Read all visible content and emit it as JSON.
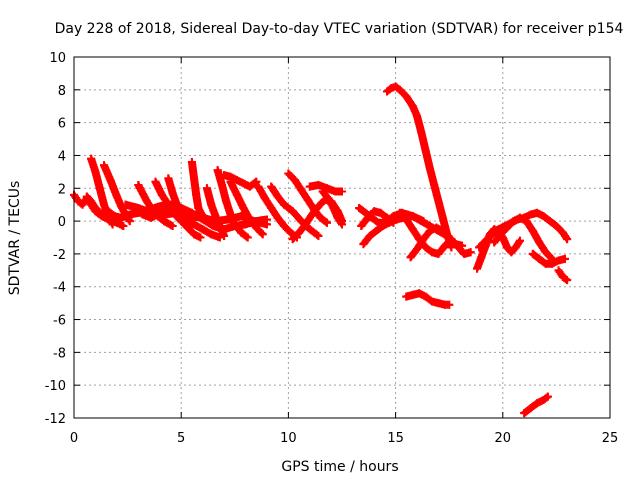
{
  "chart_data": {
    "type": "scatter",
    "title": "Day 228 of 2018, Sidereal Day-to-day VTEC variation (SDTVAR) for receiver p154",
    "xlabel": "GPS time / hours",
    "ylabel": "SDTVAR / TECUs",
    "xlim": [
      0,
      25
    ],
    "ylim": [
      -12,
      10
    ],
    "xticks": [
      "0",
      "5",
      "10",
      "15",
      "20",
      "25"
    ],
    "yticks": [
      "-12",
      "-10",
      "-8",
      "-6",
      "-4",
      "-2",
      "0",
      "2",
      "4",
      "6",
      "8",
      "10"
    ],
    "grid": true,
    "marker": "plus",
    "color": "#ff0000",
    "series": [
      {
        "points": [
          [
            0,
            1.6
          ],
          [
            0.2,
            1.2
          ],
          [
            0.4,
            1.0
          ],
          [
            0.6,
            1.4
          ],
          [
            0.8,
            1.0
          ],
          [
            1.0,
            0.6
          ],
          [
            1.3,
            0.3
          ],
          [
            1.6,
            0.1
          ],
          [
            2.0,
            -0.1
          ],
          [
            2.3,
            -0.3
          ]
        ]
      },
      {
        "points": [
          [
            0.6,
            1.5
          ],
          [
            0.8,
            1.2
          ],
          [
            1.0,
            0.8
          ],
          [
            1.3,
            0.4
          ],
          [
            1.6,
            0.6
          ],
          [
            1.9,
            0.3
          ],
          [
            2.2,
            0.2
          ],
          [
            2.6,
            0.4
          ],
          [
            3.0,
            0.5
          ],
          [
            3.5,
            0.7
          ],
          [
            4.0,
            0.9
          ],
          [
            4.5,
            1.0
          ],
          [
            5.0,
            0.8
          ],
          [
            5.5,
            0.5
          ],
          [
            6.0,
            0.1
          ],
          [
            6.5,
            -0.3
          ],
          [
            7.0,
            -0.5
          ],
          [
            7.5,
            -0.3
          ],
          [
            8.0,
            -0.2
          ],
          [
            8.5,
            0.0
          ],
          [
            9.0,
            0.1
          ]
        ]
      },
      {
        "points": [
          [
            0.8,
            3.8
          ],
          [
            1.0,
            3.0
          ],
          [
            1.2,
            2.0
          ],
          [
            1.4,
            1.0
          ],
          [
            1.6,
            0.3
          ],
          [
            1.8,
            -0.2
          ]
        ]
      },
      {
        "points": [
          [
            1.4,
            3.4
          ],
          [
            1.7,
            2.5
          ],
          [
            2.0,
            1.5
          ],
          [
            2.2,
            0.9
          ],
          [
            2.4,
            0.4
          ],
          [
            2.6,
            0.0
          ]
        ]
      },
      {
        "points": [
          [
            2.4,
            1.0
          ],
          [
            3.0,
            0.8
          ],
          [
            3.6,
            0.5
          ],
          [
            4.2,
            0.4
          ],
          [
            4.8,
            0.5
          ],
          [
            5.4,
            0.3
          ],
          [
            6.0,
            0.2
          ],
          [
            6.6,
            0.0
          ],
          [
            7.2,
            0.1
          ],
          [
            7.8,
            0.3
          ],
          [
            8.4,
            0.0
          ],
          [
            9.0,
            -0.2
          ]
        ]
      },
      {
        "points": [
          [
            2.8,
            0.8
          ],
          [
            3.2,
            0.4
          ],
          [
            3.6,
            0.2
          ],
          [
            4.0,
            0.5
          ],
          [
            4.4,
            0.9
          ],
          [
            4.8,
            0.6
          ],
          [
            5.2,
            0.2
          ],
          [
            5.6,
            -0.2
          ],
          [
            6.0,
            -0.5
          ],
          [
            6.4,
            -0.8
          ],
          [
            6.8,
            -1.0
          ]
        ]
      },
      {
        "points": [
          [
            3.0,
            2.2
          ],
          [
            3.4,
            1.2
          ],
          [
            3.8,
            0.4
          ],
          [
            4.2,
            0.0
          ],
          [
            4.6,
            -0.3
          ]
        ]
      },
      {
        "points": [
          [
            3.8,
            2.4
          ],
          [
            4.1,
            1.6
          ],
          [
            4.4,
            1.0
          ],
          [
            4.7,
            0.4
          ],
          [
            5.0,
            0.0
          ],
          [
            5.3,
            -0.4
          ],
          [
            5.6,
            -0.8
          ],
          [
            5.9,
            -1.0
          ]
        ]
      },
      {
        "points": [
          [
            4.4,
            2.6
          ],
          [
            4.6,
            1.7
          ],
          [
            4.8,
            1.0
          ],
          [
            5.0,
            0.6
          ],
          [
            5.2,
            0.2
          ],
          [
            5.5,
            -0.2
          ]
        ]
      },
      {
        "points": [
          [
            5.5,
            3.6
          ],
          [
            5.6,
            2.6
          ],
          [
            5.7,
            1.6
          ],
          [
            5.8,
            0.8
          ],
          [
            6.0,
            0.3
          ],
          [
            6.3,
            0.0
          ]
        ]
      },
      {
        "points": [
          [
            6.2,
            2.0
          ],
          [
            6.4,
            1.0
          ],
          [
            6.6,
            0.3
          ],
          [
            6.8,
            -0.3
          ],
          [
            7.0,
            -0.9
          ]
        ]
      },
      {
        "points": [
          [
            6.7,
            3.1
          ],
          [
            6.9,
            2.2
          ],
          [
            7.1,
            1.2
          ],
          [
            7.3,
            0.4
          ],
          [
            7.5,
            -0.2
          ],
          [
            7.8,
            -0.7
          ],
          [
            8.1,
            -1.0
          ]
        ]
      },
      {
        "points": [
          [
            7.0,
            2.8
          ],
          [
            7.3,
            2.7
          ],
          [
            7.6,
            2.5
          ],
          [
            7.9,
            2.3
          ],
          [
            8.2,
            2.1
          ],
          [
            8.5,
            2.4
          ]
        ]
      },
      {
        "points": [
          [
            7.3,
            2.4
          ],
          [
            7.6,
            1.6
          ],
          [
            7.9,
            0.8
          ],
          [
            8.2,
            0.1
          ],
          [
            8.5,
            -0.4
          ],
          [
            8.8,
            -0.8
          ]
        ]
      },
      {
        "points": [
          [
            8.6,
            2.1
          ],
          [
            8.9,
            1.4
          ],
          [
            9.2,
            0.8
          ],
          [
            9.5,
            0.2
          ],
          [
            9.8,
            -0.3
          ],
          [
            10.1,
            -0.7
          ],
          [
            10.4,
            -1.0
          ]
        ]
      },
      {
        "points": [
          [
            9.2,
            2.1
          ],
          [
            9.5,
            1.5
          ],
          [
            9.8,
            1.0
          ],
          [
            10.2,
            0.6
          ],
          [
            10.6,
            0.0
          ],
          [
            11.0,
            -0.5
          ],
          [
            11.4,
            -0.9
          ]
        ]
      },
      {
        "points": [
          [
            10.0,
            2.9
          ],
          [
            10.3,
            2.5
          ],
          [
            10.6,
            1.9
          ],
          [
            10.9,
            1.3
          ],
          [
            11.2,
            0.7
          ],
          [
            11.5,
            0.2
          ],
          [
            11.8,
            -0.1
          ]
        ]
      },
      {
        "points": [
          [
            10.2,
            -1.1
          ],
          [
            10.5,
            -0.7
          ],
          [
            10.8,
            -0.2
          ],
          [
            11.1,
            0.4
          ],
          [
            11.4,
            0.9
          ],
          [
            11.7,
            1.3
          ],
          [
            12.0,
            1.2
          ],
          [
            12.3,
            0.6
          ],
          [
            12.5,
            0.0
          ]
        ]
      },
      {
        "points": [
          [
            11.0,
            2.1
          ],
          [
            11.4,
            2.2
          ],
          [
            11.8,
            2.0
          ],
          [
            12.2,
            1.8
          ],
          [
            12.5,
            1.8
          ]
        ]
      },
      {
        "points": [
          [
            11.6,
            1.8
          ],
          [
            11.9,
            1.3
          ],
          [
            12.1,
            0.8
          ],
          [
            12.3,
            0.2
          ],
          [
            12.5,
            -0.2
          ]
        ]
      },
      {
        "points": [
          [
            13.3,
            0.8
          ],
          [
            13.6,
            0.5
          ],
          [
            13.9,
            0.2
          ],
          [
            14.2,
            -0.1
          ],
          [
            14.5,
            -0.1
          ],
          [
            14.9,
            0.3
          ],
          [
            15.3,
            0.5
          ],
          [
            15.8,
            0.3
          ],
          [
            16.3,
            0.0
          ]
        ]
      },
      {
        "points": [
          [
            13.4,
            -0.3
          ],
          [
            13.7,
            0.2
          ],
          [
            14.0,
            0.6
          ],
          [
            14.3,
            0.5
          ],
          [
            14.6,
            0.2
          ],
          [
            14.9,
            -0.1
          ]
        ]
      },
      {
        "points": [
          [
            13.5,
            -1.4
          ],
          [
            13.8,
            -0.9
          ],
          [
            14.1,
            -0.6
          ],
          [
            14.4,
            -0.3
          ],
          [
            14.7,
            -0.1
          ],
          [
            15.0,
            0.1
          ],
          [
            15.4,
            0.2
          ],
          [
            15.8,
            0.3
          ],
          [
            16.2,
            0.0
          ],
          [
            16.6,
            -0.3
          ],
          [
            17.0,
            -0.6
          ],
          [
            17.4,
            -0.9
          ],
          [
            17.8,
            -1.4
          ],
          [
            18.2,
            -2.0
          ],
          [
            18.5,
            -1.9
          ]
        ]
      },
      {
        "points": [
          [
            15.2,
            0.5
          ],
          [
            15.5,
            0.1
          ],
          [
            15.8,
            -0.5
          ],
          [
            16.1,
            -1.1
          ],
          [
            16.4,
            -1.6
          ],
          [
            16.7,
            -1.9
          ],
          [
            17.0,
            -2.0
          ],
          [
            17.3,
            -1.5
          ],
          [
            17.6,
            -1.1
          ]
        ]
      },
      {
        "points": [
          [
            15.7,
            -2.2
          ],
          [
            16.0,
            -1.7
          ],
          [
            16.3,
            -1.1
          ],
          [
            16.6,
            -0.6
          ],
          [
            16.9,
            -0.4
          ],
          [
            17.2,
            -0.6
          ],
          [
            17.5,
            -1.0
          ],
          [
            17.8,
            -1.4
          ],
          [
            18.1,
            -1.5
          ]
        ]
      },
      {
        "points": [
          [
            14.6,
            7.9
          ],
          [
            14.8,
            8.1
          ],
          [
            15.0,
            8.2
          ],
          [
            15.2,
            8.0
          ],
          [
            15.5,
            7.6
          ],
          [
            15.8,
            7.0
          ],
          [
            16.0,
            6.4
          ],
          [
            16.2,
            5.4
          ],
          [
            16.4,
            4.3
          ],
          [
            16.6,
            3.2
          ],
          [
            16.8,
            2.2
          ],
          [
            17.0,
            1.2
          ],
          [
            17.2,
            0.2
          ],
          [
            17.4,
            -0.8
          ],
          [
            17.6,
            -1.6
          ]
        ]
      },
      {
        "points": [
          [
            15.5,
            -4.6
          ],
          [
            15.8,
            -4.5
          ],
          [
            16.1,
            -4.4
          ],
          [
            16.4,
            -4.6
          ],
          [
            16.7,
            -4.9
          ],
          [
            17.0,
            -5.0
          ],
          [
            17.3,
            -5.1
          ],
          [
            17.5,
            -5.1
          ]
        ]
      },
      {
        "points": [
          [
            18.8,
            -2.9
          ],
          [
            19.0,
            -2.2
          ],
          [
            19.2,
            -1.5
          ],
          [
            19.4,
            -0.8
          ],
          [
            19.6,
            -0.5
          ],
          [
            19.8,
            -0.6
          ],
          [
            20.0,
            -1.0
          ],
          [
            20.2,
            -1.6
          ],
          [
            20.4,
            -1.9
          ],
          [
            20.6,
            -1.6
          ],
          [
            20.8,
            -1.2
          ]
        ]
      },
      {
        "points": [
          [
            18.9,
            -1.6
          ],
          [
            19.2,
            -1.2
          ],
          [
            19.5,
            -0.8
          ],
          [
            19.8,
            -0.5
          ],
          [
            20.1,
            -0.3
          ],
          [
            20.4,
            -0.1
          ],
          [
            20.7,
            0.1
          ],
          [
            21.0,
            0.2
          ],
          [
            21.3,
            0.4
          ],
          [
            21.6,
            0.5
          ],
          [
            21.9,
            0.3
          ],
          [
            22.2,
            0.0
          ],
          [
            22.5,
            -0.3
          ],
          [
            22.8,
            -0.7
          ],
          [
            23.0,
            -1.1
          ]
        ]
      },
      {
        "points": [
          [
            19.6,
            -1.3
          ],
          [
            19.9,
            -0.8
          ],
          [
            20.2,
            -0.4
          ],
          [
            20.5,
            0.0
          ],
          [
            20.8,
            0.2
          ],
          [
            21.1,
            0.0
          ],
          [
            21.4,
            -0.6
          ],
          [
            21.7,
            -1.3
          ],
          [
            22.0,
            -1.9
          ],
          [
            22.3,
            -2.3
          ]
        ]
      },
      {
        "points": [
          [
            21.4,
            -2.0
          ],
          [
            21.7,
            -2.3
          ],
          [
            22.0,
            -2.6
          ],
          [
            22.3,
            -2.6
          ],
          [
            22.6,
            -2.4
          ],
          [
            22.9,
            -2.3
          ]
        ]
      },
      {
        "points": [
          [
            22.6,
            -3.0
          ],
          [
            22.8,
            -3.4
          ],
          [
            23.0,
            -3.6
          ]
        ]
      },
      {
        "points": [
          [
            21.0,
            -11.7
          ],
          [
            21.3,
            -11.4
          ],
          [
            21.6,
            -11.1
          ],
          [
            21.9,
            -10.9
          ],
          [
            22.1,
            -10.7
          ]
        ]
      }
    ]
  }
}
